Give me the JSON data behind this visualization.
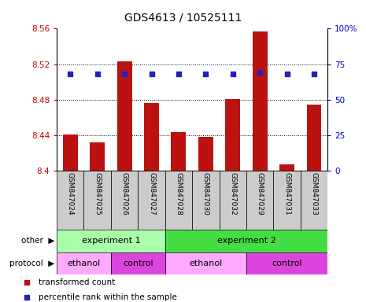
{
  "title": "GDS4613 / 10525111",
  "samples": [
    "GSM847024",
    "GSM847025",
    "GSM847026",
    "GSM847027",
    "GSM847028",
    "GSM847030",
    "GSM847032",
    "GSM847029",
    "GSM847031",
    "GSM847033"
  ],
  "transformed_counts": [
    8.441,
    8.432,
    8.523,
    8.476,
    8.443,
    8.438,
    8.481,
    8.557,
    8.407,
    8.474
  ],
  "percentile_ranks": [
    68,
    68,
    68,
    68,
    68,
    68,
    68,
    69,
    68,
    68
  ],
  "ylim_left": [
    8.4,
    8.56
  ],
  "ylim_right": [
    0,
    100
  ],
  "yticks_left": [
    8.4,
    8.44,
    8.48,
    8.52,
    8.56
  ],
  "yticks_right": [
    0,
    25,
    50,
    75,
    100
  ],
  "bar_color": "#bb1111",
  "dot_color": "#2222bb",
  "bar_bottom": 8.4,
  "other_row": [
    {
      "label": "experiment 1",
      "start": 0,
      "end": 4,
      "color": "#aaffaa"
    },
    {
      "label": "experiment 2",
      "start": 4,
      "end": 10,
      "color": "#44dd44"
    }
  ],
  "protocol_row": [
    {
      "label": "ethanol",
      "start": 0,
      "end": 2,
      "color": "#ffaaff"
    },
    {
      "label": "control",
      "start": 2,
      "end": 4,
      "color": "#dd44dd"
    },
    {
      "label": "ethanol",
      "start": 4,
      "end": 7,
      "color": "#ffaaff"
    },
    {
      "label": "control",
      "start": 7,
      "end": 10,
      "color": "#dd44dd"
    }
  ],
  "legend_items": [
    {
      "label": "transformed count",
      "color": "#bb1111",
      "marker": "s"
    },
    {
      "label": "percentile rank within the sample",
      "color": "#2222bb",
      "marker": "s"
    }
  ],
  "row_labels": [
    "other",
    "protocol"
  ],
  "background_color": "#ffffff",
  "tick_label_color_left": "#cc0000",
  "tick_label_color_right": "#0000cc",
  "sample_bg_color": "#cccccc",
  "grid_lines": [
    8.44,
    8.48,
    8.52
  ],
  "n_samples": 10
}
